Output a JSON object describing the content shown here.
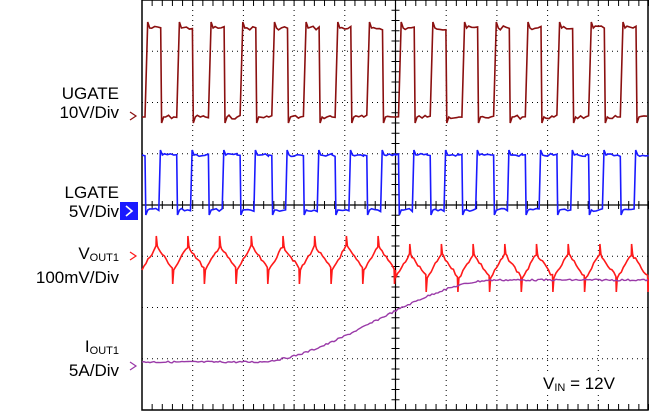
{
  "chart_data": {
    "type": "line",
    "title": "",
    "grid": true,
    "grid_divisions": {
      "x": 10,
      "y": 8
    },
    "channels": [
      {
        "key": "ugate",
        "name": "UGATE",
        "scale": "10V/Div",
        "color": "#8b1010",
        "waveform": "square",
        "periods": 16
      },
      {
        "key": "lgate",
        "name": "LGATE",
        "scale": "5V/Div",
        "color": "#1a1aff",
        "waveform": "square",
        "periods": 16
      },
      {
        "key": "vout",
        "name_main": "V",
        "name_sub": "OUT1",
        "scale": "100mV/Div",
        "color": "#ff1a1a",
        "waveform": "ripple",
        "periods": 16
      },
      {
        "key": "iout",
        "name_main": "I",
        "name_sub": "OUT1",
        "scale": "5A/Div",
        "color": "#9a3aa8",
        "waveform": "step",
        "step_from_div": 0,
        "step_to_div": 1.6
      }
    ],
    "annotation": {
      "main": "V",
      "sub": "IN",
      "rest": " = 12V"
    }
  }
}
